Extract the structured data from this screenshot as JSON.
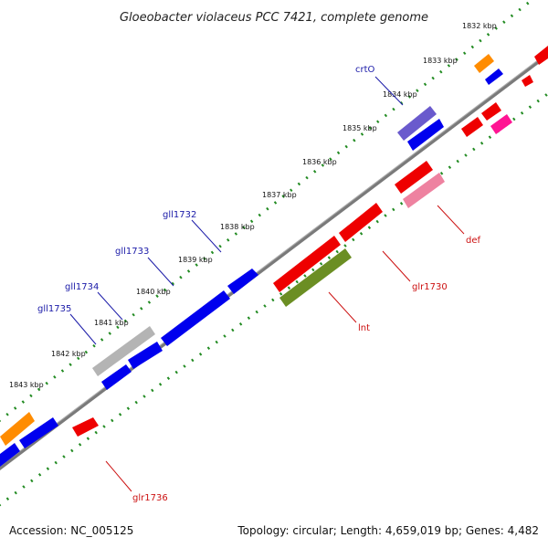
{
  "title": "Gloeobacter violaceus PCC 7421, complete genome",
  "ticks": [
    "1832 kbp",
    "1833 kbp",
    "1834 kbp",
    "1835 kbp",
    "1836 kbp",
    "1837 kbp",
    "1838 kbp",
    "1839 kbp",
    "1840 kbp",
    "1841 kbp",
    "1842 kbp",
    "1843 kbp"
  ],
  "gene_labels": {
    "crtO": "crtO",
    "gll1732": "gll1732",
    "gll1733": "gll1733",
    "gll1734": "gll1734",
    "gll1735": "gll1735",
    "def": "def",
    "glr1730": "glr1730",
    "lnt": "lnt",
    "glr1736": "glr1736"
  },
  "colors": {
    "forward_label": "#1a1aa8",
    "reverse_label": "#cc1111",
    "blue_gene": "#0000ee",
    "red_gene": "#ee0000",
    "orange_gene": "#ff8c00",
    "purple_gene": "#6a5acd",
    "gray_gene": "#b4b4b4",
    "pink_gene": "#ee82a0",
    "magenta_gene": "#ff1493",
    "olive_gene": "#6b8e23",
    "backbone": "#777777",
    "tick_dots": "#228b22"
  },
  "footer": {
    "accession": "Accession: NC_005125",
    "summary": "Topology: circular; Length: 4,659,019 bp; Genes: 4,482"
  }
}
